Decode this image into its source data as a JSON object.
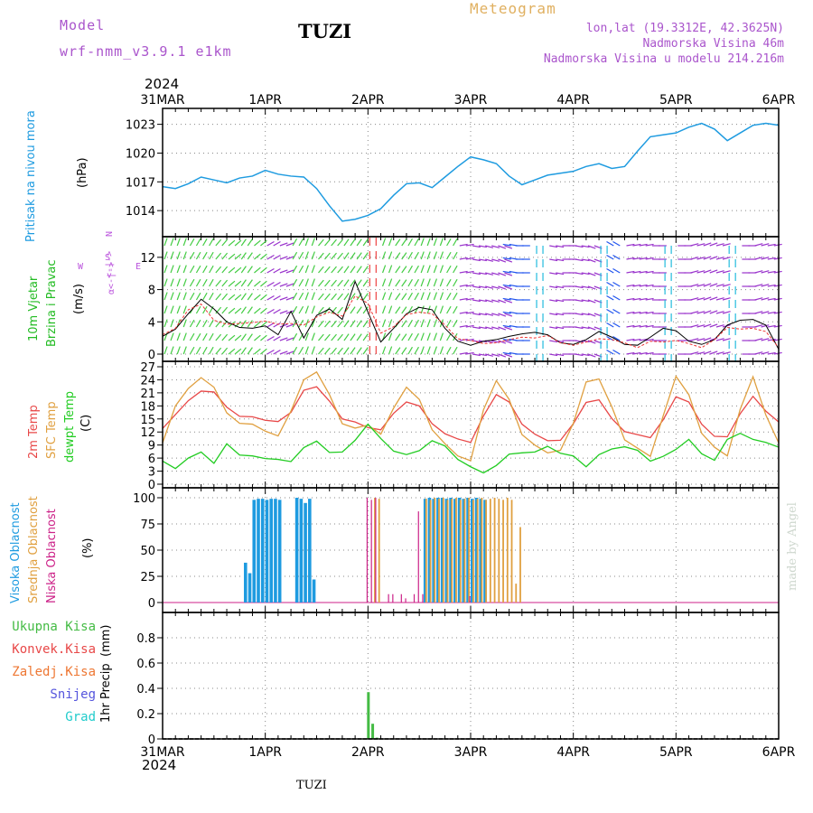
{
  "header": {
    "model_label": "Model",
    "model_name": "wrf-nmm_v3.9.1  e1km",
    "station": "TUZI",
    "title": "Meteogram",
    "lonlat": "lon,lat (19.3312E, 42.3625N)",
    "elevation": "Nadmorska Visina 46m",
    "model_elevation": "Nadmorska Visina u modelu 214.216m",
    "year": "2024",
    "footer_station": "TUZI",
    "credit": "made by Angel"
  },
  "colors": {
    "pressure": "#1e9be0",
    "temp2m": "#e84848",
    "sfc_temp": "#e0a040",
    "dewpoint": "#22cc22",
    "high_cloud": "#1e9be0",
    "mid_cloud": "#e0a040",
    "low_cloud": "#cc2288",
    "total_precip": "#44bb44",
    "conv_precip": "#e84848",
    "frozen_precip": "#ee7733",
    "snow": "#5555dd",
    "graupel": "#22cccc",
    "wind_label": "#22bb22",
    "wind_compass": "#bb55dd",
    "header": "#aa55cc",
    "title": "#e0b060"
  },
  "chart_data": [
    {
      "type": "line",
      "name": "pressure",
      "ylabel_parts": [
        "Pritisak na nivou mora",
        "(hPa)"
      ],
      "x_ticks": [
        "31MAR",
        "1APR",
        "2APR",
        "3APR",
        "4APR",
        "5APR",
        "6APR"
      ],
      "ylim": [
        1011,
        1024
      ],
      "yticks": [
        1014,
        1017,
        1020,
        1023
      ],
      "grid": true,
      "hours": [
        0,
        3,
        6,
        9,
        12,
        15,
        18,
        21,
        24,
        27,
        30,
        33,
        36,
        39,
        42,
        45,
        48,
        51,
        54,
        57,
        60,
        63,
        66,
        69,
        72,
        75,
        78,
        81,
        84,
        87,
        90,
        93,
        96,
        99,
        102,
        105,
        108,
        111,
        114,
        117,
        120,
        123,
        126,
        129,
        132,
        135,
        138,
        141,
        144
      ],
      "values": [
        1016.5,
        1016.3,
        1016.8,
        1017.5,
        1017.2,
        1016.9,
        1017.4,
        1017.6,
        1018.2,
        1017.8,
        1017.6,
        1017.5,
        1016.3,
        1014.5,
        1012.9,
        1013.1,
        1013.5,
        1014.2,
        1015.6,
        1016.8,
        1016.9,
        1016.4,
        1017.5,
        1018.6,
        1019.6,
        1019.3,
        1018.9,
        1017.6,
        1016.7,
        1017.2,
        1017.7,
        1017.9,
        1018.1,
        1018.6,
        1018.9,
        1018.4,
        1018.6,
        1020.2,
        1021.7,
        1021.9,
        1022.1,
        1022.7,
        1023.1,
        1022.5,
        1021.3,
        1022.1,
        1022.9,
        1023.1,
        1022.9
      ]
    },
    {
      "type": "line",
      "name": "wind",
      "ylabel_parts": [
        "10m Vjetar",
        "Brzina i Pravac",
        "(m/s)"
      ],
      "compass": [
        "N",
        "<-|->",
        "S",
        "W",
        "E",
        "α<-|->"
      ],
      "x_ticks": [
        "31MAR",
        "1APR",
        "2APR",
        "3APR",
        "4APR",
        "5APR",
        "6APR"
      ],
      "ylim": [
        0,
        14
      ],
      "yticks": [
        0,
        4,
        8,
        12
      ],
      "grid": true,
      "hours": [
        0,
        3,
        6,
        9,
        12,
        15,
        18,
        21,
        24,
        27,
        30,
        33,
        36,
        39,
        42,
        45,
        48,
        51,
        54,
        57,
        60,
        63,
        66,
        69,
        72,
        75,
        78,
        81,
        84,
        87,
        90,
        93,
        96,
        99,
        102,
        105,
        108,
        111,
        114,
        117,
        120,
        123,
        126,
        129,
        132,
        135,
        138,
        141,
        144
      ],
      "speed": [
        2.2,
        3.1,
        5.0,
        6.8,
        5.6,
        4.0,
        3.3,
        3.2,
        3.5,
        2.4,
        5.3,
        2.0,
        4.8,
        5.6,
        4.3,
        9.0,
        5.2,
        1.5,
        3.2,
        5.0,
        5.8,
        5.5,
        3.2,
        1.6,
        1.1,
        1.6,
        1.8,
        2.2,
        2.5,
        2.7,
        2.4,
        1.4,
        1.2,
        1.8,
        2.8,
        2.1,
        1.2,
        1.1,
        2.1,
        3.2,
        2.9,
        1.6,
        1.2,
        1.8,
        3.6,
        4.2,
        4.3,
        3.6,
        0.6
      ],
      "gust": [
        2.4,
        3.2,
        5.5,
        6.2,
        4.2,
        3.7,
        3.8,
        3.9,
        4.1,
        3.7,
        3.8,
        3.6,
        4.6,
        5.2,
        4.7,
        7.2,
        6.3,
        2.6,
        3.4,
        4.9,
        5.2,
        5.0,
        3.6,
        1.9,
        1.7,
        1.3,
        1.4,
        1.8,
        2.1,
        2.0,
        2.3,
        1.4,
        1.1,
        1.5,
        1.9,
        1.8,
        1.4,
        0.8,
        1.6,
        1.5,
        1.7,
        1.3,
        0.8,
        1.8,
        3.3,
        3.1,
        3.2,
        2.8,
        0.8
      ],
      "direction_deg": [
        200,
        200,
        210,
        210,
        220,
        230,
        215,
        230,
        240,
        250,
        210,
        200,
        220,
        220,
        215,
        215,
        180,
        200,
        215,
        210,
        200,
        200,
        210,
        260,
        280,
        285,
        290,
        100,
        90,
        0,
        280,
        270,
        280,
        290,
        0,
        120,
        260,
        260,
        270,
        0,
        270,
        255,
        250,
        255,
        0,
        270,
        255,
        260,
        245
      ]
    },
    {
      "type": "line",
      "name": "temperature",
      "ylabel_parts": [
        "2m Temp",
        "SFC Temp",
        "dewpt Temp",
        "(C)"
      ],
      "x_ticks": [
        "31MAR",
        "1APR",
        "2APR",
        "3APR",
        "4APR",
        "5APR",
        "6APR"
      ],
      "ylim": [
        0,
        27
      ],
      "yticks": [
        0,
        3,
        6,
        9,
        12,
        15,
        18,
        21,
        24,
        27
      ],
      "grid": true,
      "hours": [
        0,
        3,
        6,
        9,
        12,
        15,
        18,
        21,
        24,
        27,
        30,
        33,
        36,
        39,
        42,
        45,
        48,
        51,
        54,
        57,
        60,
        63,
        66,
        69,
        72,
        75,
        78,
        81,
        84,
        87,
        90,
        93,
        96,
        99,
        102,
        105,
        108,
        111,
        114,
        117,
        120,
        123,
        126,
        129,
        132,
        135,
        138,
        141,
        144
      ],
      "series": [
        {
          "name": "2m Temp",
          "values": [
            12.8,
            16.0,
            19.2,
            21.4,
            21.2,
            17.7,
            15.6,
            15.5,
            14.7,
            14.4,
            16.5,
            21.6,
            22.4,
            19.1,
            15.0,
            14.3,
            13.0,
            12.5,
            16.3,
            18.9,
            18.0,
            13.9,
            11.6,
            10.4,
            9.6,
            15.7,
            20.6,
            18.9,
            13.8,
            11.5,
            10.0,
            10.1,
            13.9,
            18.8,
            19.4,
            15.1,
            12.1,
            11.4,
            10.7,
            14.8,
            20.1,
            18.9,
            13.8,
            11.0,
            10.9,
            16.2,
            20.2,
            16.8,
            14.3
          ]
        },
        {
          "name": "SFC Temp",
          "values": [
            9.5,
            18.0,
            22.0,
            24.5,
            22.3,
            16.4,
            14.0,
            13.8,
            12.2,
            11.1,
            16.8,
            24.0,
            25.8,
            20.6,
            13.9,
            12.9,
            13.6,
            11.5,
            17.5,
            22.3,
            19.5,
            12.5,
            9.3,
            6.5,
            5.4,
            17.1,
            23.8,
            19.5,
            11.4,
            9.0,
            7.2,
            7.8,
            14.0,
            23.5,
            24.2,
            17.8,
            10.2,
            8.3,
            6.4,
            15.7,
            24.8,
            20.6,
            11.7,
            8.5,
            6.5,
            17.2,
            24.7,
            15.9,
            9.5
          ]
        },
        {
          "name": "dewpt Temp",
          "values": [
            5.3,
            3.6,
            6.0,
            7.4,
            4.8,
            9.3,
            6.7,
            6.5,
            5.9,
            5.7,
            5.2,
            8.4,
            9.9,
            7.3,
            7.4,
            10.1,
            13.8,
            10.5,
            7.6,
            6.8,
            7.7,
            10.0,
            8.8,
            5.7,
            4.0,
            2.6,
            4.3,
            6.9,
            7.2,
            7.4,
            8.7,
            7.1,
            6.5,
            4.0,
            6.8,
            8.1,
            8.6,
            7.8,
            5.3,
            6.4,
            8.0,
            10.3,
            7.0,
            5.5,
            10.3,
            11.7,
            10.3,
            9.6,
            8.5
          ]
        }
      ]
    },
    {
      "type": "bar",
      "name": "cloud_cover",
      "ylabel_parts": [
        "Visoka Oblacnost",
        "Srednja Oblacnost",
        "Niska Oblacnost",
        "(%)"
      ],
      "x_ticks": [
        "31MAR",
        "1APR",
        "2APR",
        "3APR",
        "4APR",
        "5APR",
        "6APR"
      ],
      "ylim": [
        0,
        100
      ],
      "yticks": [
        0,
        25,
        50,
        75,
        100
      ],
      "grid": true,
      "series": [
        {
          "name": "Visoka Oblacnost",
          "hours": [
            19,
            20,
            21,
            22,
            23,
            24,
            25,
            26,
            27,
            31,
            32,
            33,
            34,
            35,
            61,
            62,
            63,
            64,
            65,
            66,
            67,
            68,
            69,
            70,
            71,
            72,
            73,
            74,
            75
          ],
          "values": [
            38,
            28,
            98,
            99,
            99,
            98,
            99,
            99,
            98,
            100,
            99,
            95,
            99,
            22,
            99,
            100,
            99,
            100,
            100,
            99,
            100,
            99,
            100,
            99,
            100,
            99,
            100,
            99,
            98
          ]
        },
        {
          "name": "Srednja Oblacnost",
          "hours": [
            49,
            50,
            61,
            62,
            63,
            64,
            65,
            66,
            67,
            68,
            69,
            70,
            71,
            72,
            73,
            74,
            75,
            76,
            77,
            78,
            79,
            80,
            81,
            82,
            83
          ],
          "values": [
            100,
            99,
            99,
            98,
            100,
            99,
            100,
            98,
            99,
            100,
            98,
            99,
            100,
            98,
            99,
            100,
            98,
            99,
            100,
            99,
            98,
            100,
            98,
            18,
            72
          ]
        },
        {
          "name": "Niska Oblacnost",
          "hours": [
            48,
            49,
            50,
            53,
            54,
            56,
            57,
            59,
            60,
            61,
            72
          ],
          "values": [
            100,
            98,
            100,
            8,
            8,
            8,
            4,
            8,
            87,
            8,
            6
          ]
        }
      ]
    },
    {
      "type": "bar",
      "name": "precipitation",
      "ylabel_parts": [
        "1hr Precip",
        "(mm)"
      ],
      "legend": [
        "Ukupna Kisa",
        "Konvek.Kisa",
        "Zaledj.Kisa",
        "Snijeg",
        "Grad"
      ],
      "x_ticks": [
        "31MAR",
        "1APR",
        "2APR",
        "3APR",
        "4APR",
        "5APR",
        "6APR"
      ],
      "date_labels_bottom": [
        "31MAR",
        "1APR",
        "2APR",
        "3APR",
        "4APR",
        "5APR",
        "6APR"
      ],
      "ylim": [
        0,
        1.0
      ],
      "yticks": [
        0,
        0.2,
        0.4,
        0.6,
        0.8
      ],
      "grid": true,
      "series": [
        {
          "name": "Ukupna Kisa",
          "hours": [
            48,
            49,
            50
          ],
          "values": [
            0.37,
            0.12,
            0.01
          ]
        }
      ]
    }
  ]
}
